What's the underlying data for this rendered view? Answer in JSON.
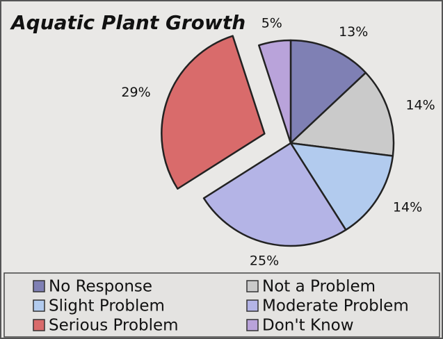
{
  "chart_data": {
    "type": "pie",
    "title": "Aquatic Plant Growth",
    "categories": [
      "No Response",
      "Not a Problem",
      "Slight Problem",
      "Moderate Problem",
      "Serious Problem",
      "Don't Know"
    ],
    "values": [
      13,
      14,
      14,
      25,
      29,
      5
    ],
    "value_labels": [
      "13%",
      "14%",
      "14%",
      "25%",
      "29%",
      "5%"
    ],
    "colors": [
      "#7f80b4",
      "#cacaca",
      "#b2cbee",
      "#b4b4e6",
      "#d96b6b",
      "#b9a3da"
    ],
    "exploded": [
      false,
      false,
      false,
      false,
      true,
      false
    ],
    "legend": "bottom"
  }
}
